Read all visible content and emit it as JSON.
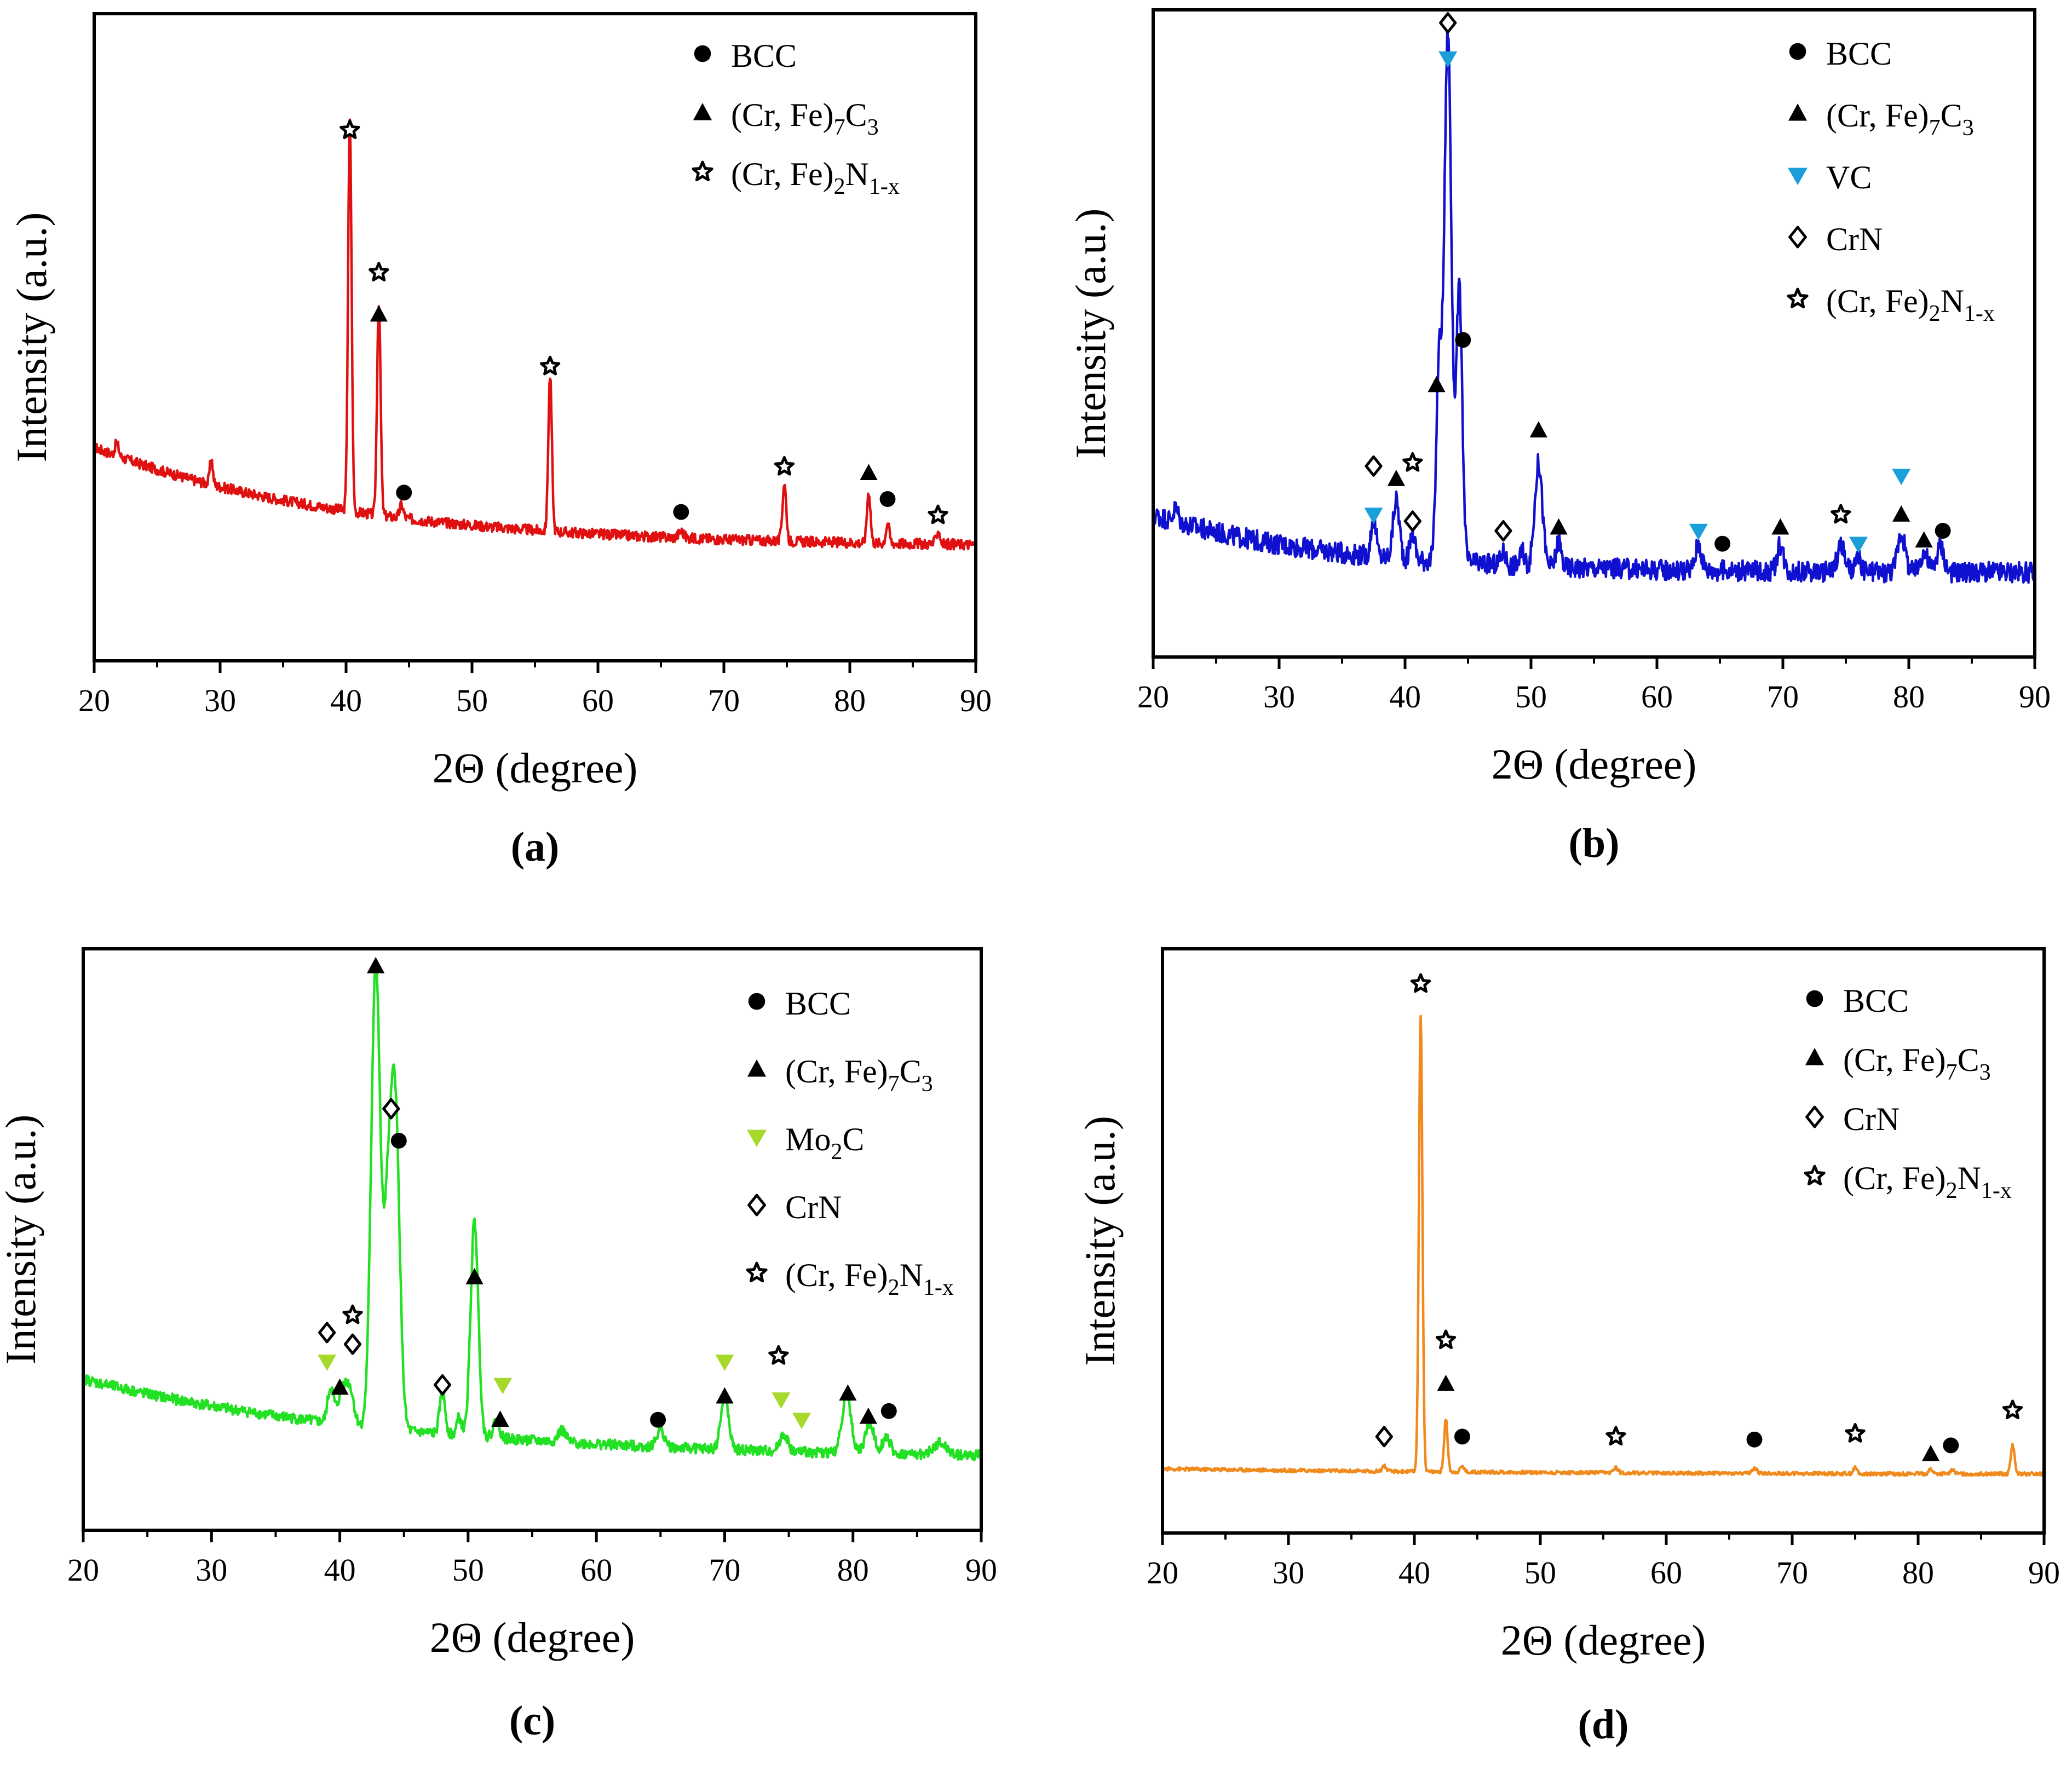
{
  "figure": {
    "panels": [
      "a",
      "b",
      "c",
      "d"
    ]
  },
  "symbol_names": {
    "circle": "bcc-marker-icon",
    "triangle-up": "carbide-marker-icon",
    "triangle-down": "carbide-down-marker-icon",
    "diamond": "crn-marker-icon",
    "star": "nitride-star-marker-icon"
  },
  "chart_data": [
    {
      "id": "a",
      "panel_label": "(a)",
      "type": "line",
      "color": "#e01010",
      "title": "",
      "xlabel": "2Θ (degree)",
      "ylabel": "Intensity (a.u.)",
      "xlim": [
        20,
        90
      ],
      "ylim": [
        0,
        100
      ],
      "xticks": [
        20,
        30,
        40,
        50,
        60,
        70,
        80,
        90
      ],
      "xtick_labels": [
        "20",
        "30",
        "40",
        "50",
        "60",
        "70",
        "80",
        "90"
      ],
      "baseline": {
        "start": 33,
        "end": 17.5,
        "decay": 20
      },
      "peaks": [
        {
          "x": 21.8,
          "h": 2,
          "w": 0.15
        },
        {
          "x": 29.3,
          "h": 4,
          "w": 0.12
        },
        {
          "x": 40.3,
          "h": 60,
          "w": 0.14
        },
        {
          "x": 42.6,
          "h": 33,
          "w": 0.14
        },
        {
          "x": 44.4,
          "h": 2,
          "w": 0.15
        },
        {
          "x": 56.2,
          "h": 24,
          "w": 0.14
        },
        {
          "x": 66.6,
          "h": 1,
          "w": 0.2
        },
        {
          "x": 74.8,
          "h": 9,
          "w": 0.15
        },
        {
          "x": 81.5,
          "h": 8,
          "w": 0.14
        },
        {
          "x": 83.0,
          "h": 3,
          "w": 0.14
        },
        {
          "x": 87.0,
          "h": 2,
          "w": 0.15
        }
      ],
      "noise": 0.8,
      "markers": [
        {
          "x": 40.3,
          "y": 82,
          "symbol": "star",
          "color": "#000"
        },
        {
          "x": 42.6,
          "y": 60,
          "symbol": "star",
          "color": "#000"
        },
        {
          "x": 42.6,
          "y": 53.5,
          "symbol": "triangle-up",
          "color": "#000"
        },
        {
          "x": 44.6,
          "y": 26,
          "symbol": "circle",
          "color": "#000"
        },
        {
          "x": 56.2,
          "y": 45.5,
          "symbol": "star",
          "color": "#000"
        },
        {
          "x": 66.6,
          "y": 23,
          "symbol": "circle",
          "color": "#000"
        },
        {
          "x": 74.8,
          "y": 30,
          "symbol": "star",
          "color": "#000"
        },
        {
          "x": 81.5,
          "y": 29,
          "symbol": "triangle-up",
          "color": "#000"
        },
        {
          "x": 83.0,
          "y": 25,
          "symbol": "circle",
          "color": "#000"
        },
        {
          "x": 87.0,
          "y": 22.5,
          "symbol": "star",
          "color": "#000"
        }
      ],
      "legend": [
        {
          "symbol": "circle",
          "color": "#000",
          "label": "BCC",
          "sub": ""
        },
        {
          "symbol": "triangle-up",
          "color": "#000",
          "label": "(Cr, Fe)",
          "sub": "7",
          "label2": "C",
          "sub2": "3"
        },
        {
          "symbol": "star",
          "color": "#000",
          "label": "(Cr, Fe)",
          "sub": "2",
          "label2": "N",
          "sub2": "1-x"
        }
      ]
    },
    {
      "id": "b",
      "panel_label": "(b)",
      "type": "line",
      "color": "#1010d0",
      "title": "",
      "xlabel": "2Θ (degree)",
      "ylabel": "Intensity (a.u.)",
      "xlim": [
        20,
        90
      ],
      "ylim": [
        0,
        100
      ],
      "xticks": [
        20,
        30,
        40,
        50,
        60,
        70,
        80,
        90
      ],
      "xtick_labels": [
        "20",
        "30",
        "40",
        "50",
        "60",
        "70",
        "80",
        "90"
      ],
      "baseline": {
        "start": 22,
        "end": 13,
        "decay": 14
      },
      "peaks": [
        {
          "x": 21.8,
          "h": 2,
          "w": 0.2
        },
        {
          "x": 37.5,
          "h": 6,
          "w": 0.2
        },
        {
          "x": 39.3,
          "h": 9,
          "w": 0.25
        },
        {
          "x": 40.6,
          "h": 4,
          "w": 0.2
        },
        {
          "x": 42.7,
          "h": 30,
          "w": 0.22
        },
        {
          "x": 43.4,
          "h": 82,
          "w": 0.28
        },
        {
          "x": 44.3,
          "h": 42,
          "w": 0.24
        },
        {
          "x": 47.8,
          "h": 2,
          "w": 0.2
        },
        {
          "x": 49.3,
          "h": 2,
          "w": 0.2
        },
        {
          "x": 50.6,
          "h": 16,
          "w": 0.3
        },
        {
          "x": 52.2,
          "h": 4,
          "w": 0.2
        },
        {
          "x": 63.3,
          "h": 4,
          "w": 0.25
        },
        {
          "x": 69.8,
          "h": 4,
          "w": 0.25
        },
        {
          "x": 74.6,
          "h": 4,
          "w": 0.3
        },
        {
          "x": 76.0,
          "h": 2,
          "w": 0.2
        },
        {
          "x": 79.4,
          "h": 6,
          "w": 0.3
        },
        {
          "x": 81.2,
          "h": 3,
          "w": 0.3
        },
        {
          "x": 82.5,
          "h": 4,
          "w": 0.3
        }
      ],
      "noise": 1.6,
      "markers": [
        {
          "x": 43.4,
          "y": 98,
          "symbol": "diamond",
          "color": "#000"
        },
        {
          "x": 43.4,
          "y": 92.5,
          "symbol": "triangle-down",
          "color": "#1a9fd8"
        },
        {
          "x": 44.6,
          "y": 49,
          "symbol": "circle",
          "color": "#000"
        },
        {
          "x": 42.5,
          "y": 42,
          "symbol": "triangle-up",
          "color": "#000"
        },
        {
          "x": 37.5,
          "y": 29.5,
          "symbol": "diamond",
          "color": "#000"
        },
        {
          "x": 37.5,
          "y": 22,
          "symbol": "triangle-down",
          "color": "#1a9fd8"
        },
        {
          "x": 39.3,
          "y": 27.5,
          "symbol": "triangle-up",
          "color": "#000"
        },
        {
          "x": 40.6,
          "y": 30,
          "symbol": "star",
          "color": "#000"
        },
        {
          "x": 40.6,
          "y": 21,
          "symbol": "diamond",
          "color": "#000"
        },
        {
          "x": 47.8,
          "y": 19.5,
          "symbol": "diamond",
          "color": "#000"
        },
        {
          "x": 50.6,
          "y": 35,
          "symbol": "triangle-up",
          "color": "#000"
        },
        {
          "x": 52.2,
          "y": 20,
          "symbol": "triangle-up",
          "color": "#000"
        },
        {
          "x": 63.3,
          "y": 19.5,
          "symbol": "triangle-down",
          "color": "#1a9fd8"
        },
        {
          "x": 65.2,
          "y": 17.5,
          "symbol": "circle",
          "color": "#000"
        },
        {
          "x": 69.8,
          "y": 20,
          "symbol": "triangle-up",
          "color": "#000"
        },
        {
          "x": 74.6,
          "y": 22,
          "symbol": "star",
          "color": "#000"
        },
        {
          "x": 76.0,
          "y": 17.5,
          "symbol": "triangle-down",
          "color": "#1a9fd8"
        },
        {
          "x": 79.4,
          "y": 28,
          "symbol": "triangle-down",
          "color": "#1a9fd8"
        },
        {
          "x": 79.4,
          "y": 22,
          "symbol": "triangle-up",
          "color": "#000"
        },
        {
          "x": 81.2,
          "y": 18,
          "symbol": "triangle-up",
          "color": "#000"
        },
        {
          "x": 82.7,
          "y": 19.5,
          "symbol": "circle",
          "color": "#000"
        }
      ],
      "legend": [
        {
          "symbol": "circle",
          "color": "#000",
          "label": "BCC",
          "sub": ""
        },
        {
          "symbol": "triangle-up",
          "color": "#000",
          "label": "(Cr, Fe)",
          "sub": "7",
          "label2": "C",
          "sub2": "3"
        },
        {
          "symbol": "triangle-down",
          "color": "#1a9fd8",
          "label": "VC",
          "sub": ""
        },
        {
          "symbol": "diamond",
          "color": "#000",
          "label": "CrN",
          "sub": ""
        },
        {
          "symbol": "star",
          "color": "#000",
          "label": "(Cr, Fe)",
          "sub": "2",
          "label2": "N",
          "sub2": "1-x"
        }
      ]
    },
    {
      "id": "c",
      "panel_label": "(c)",
      "type": "line",
      "color": "#22e022",
      "title": "",
      "xlabel": "2Θ (degree)",
      "ylabel": "Intensity (a.u.)",
      "xlim": [
        20,
        90
      ],
      "ylim": [
        0,
        100
      ],
      "xticks": [
        20,
        30,
        40,
        50,
        60,
        70,
        80,
        90
      ],
      "xtick_labels": [
        "20",
        "30",
        "40",
        "50",
        "60",
        "70",
        "80",
        "90"
      ],
      "baseline": {
        "start": 26,
        "end": 12,
        "decay": 25
      },
      "peaks": [
        {
          "x": 39.3,
          "h": 6,
          "w": 0.25
        },
        {
          "x": 40.2,
          "h": 6,
          "w": 0.3
        },
        {
          "x": 40.8,
          "h": 6,
          "w": 0.3
        },
        {
          "x": 42.8,
          "h": 80,
          "w": 0.35
        },
        {
          "x": 43.7,
          "h": 30,
          "w": 0.3
        },
        {
          "x": 44.3,
          "h": 57,
          "w": 0.35
        },
        {
          "x": 48.0,
          "h": 7,
          "w": 0.22
        },
        {
          "x": 49.3,
          "h": 3,
          "w": 0.2
        },
        {
          "x": 50.5,
          "h": 37,
          "w": 0.3
        },
        {
          "x": 52.2,
          "h": 3,
          "w": 0.25
        },
        {
          "x": 57.3,
          "h": 2,
          "w": 0.3
        },
        {
          "x": 65.0,
          "h": 3,
          "w": 0.3
        },
        {
          "x": 70.0,
          "h": 9,
          "w": 0.3
        },
        {
          "x": 74.6,
          "h": 3,
          "w": 0.3
        },
        {
          "x": 79.5,
          "h": 10,
          "w": 0.35
        },
        {
          "x": 81.3,
          "h": 5,
          "w": 0.35
        },
        {
          "x": 82.6,
          "h": 3,
          "w": 0.3
        },
        {
          "x": 86.8,
          "h": 2,
          "w": 0.5
        }
      ],
      "noise": 0.9,
      "markers": [
        {
          "x": 42.8,
          "y": 97,
          "symbol": "triangle-up",
          "color": "#000"
        },
        {
          "x": 44.0,
          "y": 72.5,
          "symbol": "diamond",
          "color": "#000"
        },
        {
          "x": 44.6,
          "y": 67,
          "symbol": "circle",
          "color": "#000"
        },
        {
          "x": 39.0,
          "y": 34,
          "symbol": "diamond",
          "color": "#000"
        },
        {
          "x": 41.0,
          "y": 37,
          "symbol": "star",
          "color": "#000"
        },
        {
          "x": 41.0,
          "y": 32,
          "symbol": "diamond",
          "color": "#000"
        },
        {
          "x": 39.0,
          "y": 29,
          "symbol": "triangle-down",
          "color": "#a6d92a"
        },
        {
          "x": 40.0,
          "y": 24.5,
          "symbol": "triangle-up",
          "color": "#000"
        },
        {
          "x": 48.0,
          "y": 25,
          "symbol": "diamond",
          "color": "#000"
        },
        {
          "x": 50.5,
          "y": 43.5,
          "symbol": "triangle-up",
          "color": "#000"
        },
        {
          "x": 52.7,
          "y": 25,
          "symbol": "triangle-down",
          "color": "#a6d92a"
        },
        {
          "x": 52.5,
          "y": 19,
          "symbol": "triangle-up",
          "color": "#000"
        },
        {
          "x": 64.8,
          "y": 19,
          "symbol": "circle",
          "color": "#000"
        },
        {
          "x": 70.0,
          "y": 29,
          "symbol": "triangle-down",
          "color": "#a6d92a"
        },
        {
          "x": 70.0,
          "y": 23,
          "symbol": "triangle-up",
          "color": "#000"
        },
        {
          "x": 74.2,
          "y": 30,
          "symbol": "star",
          "color": "#000"
        },
        {
          "x": 74.4,
          "y": 22.5,
          "symbol": "triangle-down",
          "color": "#a6d92a"
        },
        {
          "x": 76.0,
          "y": 19,
          "symbol": "triangle-down",
          "color": "#a6d92a"
        },
        {
          "x": 79.6,
          "y": 23.5,
          "symbol": "triangle-up",
          "color": "#000"
        },
        {
          "x": 81.2,
          "y": 19.5,
          "symbol": "triangle-up",
          "color": "#000"
        },
        {
          "x": 82.8,
          "y": 20.5,
          "symbol": "circle",
          "color": "#000"
        }
      ],
      "legend": [
        {
          "symbol": "circle",
          "color": "#000",
          "label": "BCC",
          "sub": ""
        },
        {
          "symbol": "triangle-up",
          "color": "#000",
          "label": "(Cr, Fe)",
          "sub": "7",
          "label2": "C",
          "sub2": "3"
        },
        {
          "symbol": "triangle-down",
          "color": "#a6d92a",
          "label": "Mo",
          "sub": "2",
          "label2": "C",
          "sub2": ""
        },
        {
          "symbol": "diamond",
          "color": "#000",
          "label": "CrN",
          "sub": ""
        },
        {
          "symbol": "star",
          "color": "#000",
          "label": "(Cr, Fe)",
          "sub": "2",
          "label2": "N",
          "sub2": "1-x"
        }
      ]
    },
    {
      "id": "d",
      "panel_label": "(d)",
      "type": "line",
      "color": "#f08a1c",
      "title": "",
      "xlabel": "2Θ (degree)",
      "ylabel": "Intensity (a.u.)",
      "xlim": [
        20,
        90
      ],
      "ylim": [
        0,
        100
      ],
      "xticks": [
        20,
        30,
        40,
        50,
        60,
        70,
        80,
        90
      ],
      "xtick_labels": [
        "20",
        "30",
        "40",
        "50",
        "60",
        "70",
        "80",
        "90"
      ],
      "baseline": {
        "start": 11,
        "end": 10,
        "decay": 30
      },
      "peaks": [
        {
          "x": 37.6,
          "h": 1,
          "w": 0.15
        },
        {
          "x": 40.5,
          "h": 78,
          "w": 0.14
        },
        {
          "x": 42.5,
          "h": 9,
          "w": 0.14
        },
        {
          "x": 43.8,
          "h": 1,
          "w": 0.15
        },
        {
          "x": 56.0,
          "h": 1,
          "w": 0.15
        },
        {
          "x": 67.0,
          "h": 0.8,
          "w": 0.2
        },
        {
          "x": 75.0,
          "h": 1,
          "w": 0.15
        },
        {
          "x": 81.0,
          "h": 0.8,
          "w": 0.15
        },
        {
          "x": 82.7,
          "h": 0.8,
          "w": 0.15
        },
        {
          "x": 87.5,
          "h": 5,
          "w": 0.15
        }
      ],
      "noise": 0.3,
      "markers": [
        {
          "x": 40.5,
          "y": 94,
          "symbol": "star",
          "color": "#000"
        },
        {
          "x": 42.5,
          "y": 33,
          "symbol": "star",
          "color": "#000"
        },
        {
          "x": 42.5,
          "y": 25.5,
          "symbol": "triangle-up",
          "color": "#000"
        },
        {
          "x": 37.6,
          "y": 16.5,
          "symbol": "diamond",
          "color": "#000"
        },
        {
          "x": 43.8,
          "y": 16.5,
          "symbol": "circle",
          "color": "#000"
        },
        {
          "x": 56.0,
          "y": 16.5,
          "symbol": "star",
          "color": "#000"
        },
        {
          "x": 67.0,
          "y": 16,
          "symbol": "circle",
          "color": "#000"
        },
        {
          "x": 75.0,
          "y": 17,
          "symbol": "star",
          "color": "#000"
        },
        {
          "x": 81.0,
          "y": 13.5,
          "symbol": "triangle-up",
          "color": "#000"
        },
        {
          "x": 82.6,
          "y": 15,
          "symbol": "circle",
          "color": "#000"
        },
        {
          "x": 87.5,
          "y": 21,
          "symbol": "star",
          "color": "#000"
        }
      ],
      "legend": [
        {
          "symbol": "circle",
          "color": "#000",
          "label": "BCC",
          "sub": ""
        },
        {
          "symbol": "triangle-up",
          "color": "#000",
          "label": "(Cr, Fe)",
          "sub": "7",
          "label2": "C",
          "sub2": "3"
        },
        {
          "symbol": "diamond",
          "color": "#000",
          "label": "CrN",
          "sub": ""
        },
        {
          "symbol": "star",
          "color": "#000",
          "label": "(Cr, Fe)",
          "sub": "2",
          "label2": "N",
          "sub2": "1-x"
        }
      ]
    }
  ]
}
